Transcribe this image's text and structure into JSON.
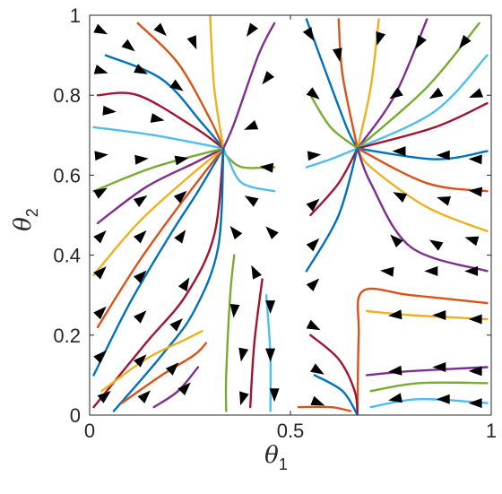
{
  "chart_data": {
    "type": "line",
    "title": "",
    "xlabel": "θ",
    "xlabel_sub": "1",
    "ylabel": "θ",
    "ylabel_sub": "2",
    "xlim": [
      0,
      1
    ],
    "ylim": [
      0,
      1
    ],
    "x_ticks": [
      0,
      0.5,
      1
    ],
    "x_tick_labels": [
      "0",
      "0.5",
      "1"
    ],
    "y_ticks": [
      0,
      0.2,
      0.4,
      0.6,
      0.8,
      1
    ],
    "y_tick_labels": [
      "0",
      "0.2",
      "0.4",
      "0.6",
      "0.8",
      "1"
    ],
    "grid": false,
    "legend": "none",
    "attractors": [
      {
        "x": 0.333,
        "y": 0.667
      },
      {
        "x": 0.667,
        "y": 0.667
      }
    ],
    "palette": [
      "#0072BD",
      "#D95319",
      "#EDB120",
      "#7E2F8E",
      "#77AC30",
      "#4DBEEE",
      "#A2142F"
    ],
    "series": [
      {
        "points": [
          [
            0.01,
            0.1
          ],
          [
            0.1,
            0.28
          ],
          [
            0.2,
            0.45
          ],
          [
            0.27,
            0.56
          ],
          [
            0.333,
            0.667
          ]
        ]
      },
      {
        "points": [
          [
            0.02,
            0.22
          ],
          [
            0.12,
            0.38
          ],
          [
            0.22,
            0.52
          ],
          [
            0.333,
            0.667
          ]
        ]
      },
      {
        "points": [
          [
            0.01,
            0.35
          ],
          [
            0.12,
            0.48
          ],
          [
            0.24,
            0.59
          ],
          [
            0.333,
            0.667
          ]
        ]
      },
      {
        "points": [
          [
            0.02,
            0.48
          ],
          [
            0.14,
            0.57
          ],
          [
            0.26,
            0.63
          ],
          [
            0.333,
            0.667
          ]
        ]
      },
      {
        "points": [
          [
            0.01,
            0.56
          ],
          [
            0.16,
            0.62
          ],
          [
            0.333,
            0.667
          ]
        ]
      },
      {
        "points": [
          [
            0.01,
            0.72
          ],
          [
            0.16,
            0.7
          ],
          [
            0.333,
            0.667
          ]
        ]
      },
      {
        "points": [
          [
            0.02,
            0.8
          ],
          [
            0.12,
            0.8
          ],
          [
            0.26,
            0.72
          ],
          [
            0.333,
            0.667
          ]
        ]
      },
      {
        "points": [
          [
            0.04,
            0.9
          ],
          [
            0.18,
            0.84
          ],
          [
            0.28,
            0.73
          ],
          [
            0.333,
            0.667
          ]
        ]
      },
      {
        "points": [
          [
            0.12,
            0.98
          ],
          [
            0.22,
            0.88
          ],
          [
            0.3,
            0.74
          ],
          [
            0.333,
            0.667
          ]
        ]
      },
      {
        "points": [
          [
            0.3,
            1.0
          ],
          [
            0.31,
            0.82
          ],
          [
            0.333,
            0.667
          ]
        ]
      },
      {
        "points": [
          [
            0.46,
            0.98
          ],
          [
            0.42,
            0.9
          ],
          [
            0.36,
            0.73
          ],
          [
            0.333,
            0.667
          ]
        ]
      },
      {
        "points": [
          [
            0.46,
            0.62
          ],
          [
            0.38,
            0.62
          ],
          [
            0.34,
            0.65
          ],
          [
            0.333,
            0.667
          ]
        ]
      },
      {
        "points": [
          [
            0.46,
            0.56
          ],
          [
            0.38,
            0.58
          ],
          [
            0.345,
            0.64
          ],
          [
            0.333,
            0.667
          ]
        ]
      },
      {
        "points": [
          [
            0.01,
            0.02
          ],
          [
            0.14,
            0.18
          ],
          [
            0.24,
            0.3
          ],
          [
            0.31,
            0.45
          ],
          [
            0.333,
            0.667
          ]
        ]
      },
      {
        "points": [
          [
            0.06,
            0.01
          ],
          [
            0.18,
            0.15
          ],
          [
            0.26,
            0.26
          ],
          [
            0.32,
            0.42
          ],
          [
            0.333,
            0.667
          ]
        ]
      },
      {
        "points": [
          [
            0.08,
            0.03
          ],
          [
            0.18,
            0.1
          ],
          [
            0.26,
            0.15
          ],
          [
            0.29,
            0.18
          ]
        ]
      },
      {
        "points": [
          [
            0.03,
            0.06
          ],
          [
            0.14,
            0.14
          ],
          [
            0.24,
            0.19
          ],
          [
            0.28,
            0.21
          ]
        ]
      },
      {
        "points": [
          [
            0.16,
            0.02
          ],
          [
            0.22,
            0.06
          ],
          [
            0.27,
            0.12
          ]
        ]
      },
      {
        "points": [
          [
            0.34,
            0.01
          ],
          [
            0.34,
            0.1
          ],
          [
            0.35,
            0.3
          ],
          [
            0.36,
            0.4
          ]
        ]
      },
      {
        "points": [
          [
            0.45,
            0.01
          ],
          [
            0.45,
            0.15
          ],
          [
            0.44,
            0.3
          ]
        ]
      },
      {
        "points": [
          [
            0.4,
            0.02
          ],
          [
            0.41,
            0.18
          ],
          [
            0.43,
            0.34
          ]
        ]
      },
      {
        "points": [
          [
            0.54,
            0.99
          ],
          [
            0.58,
            0.88
          ],
          [
            0.64,
            0.72
          ],
          [
            0.667,
            0.667
          ]
        ]
      },
      {
        "points": [
          [
            0.62,
            0.99
          ],
          [
            0.63,
            0.85
          ],
          [
            0.667,
            0.667
          ]
        ]
      },
      {
        "points": [
          [
            0.72,
            0.99
          ],
          [
            0.7,
            0.82
          ],
          [
            0.667,
            0.667
          ]
        ]
      },
      {
        "points": [
          [
            0.84,
            0.99
          ],
          [
            0.76,
            0.8
          ],
          [
            0.667,
            0.667
          ]
        ]
      },
      {
        "points": [
          [
            0.97,
            0.98
          ],
          [
            0.84,
            0.82
          ],
          [
            0.667,
            0.667
          ]
        ]
      },
      {
        "points": [
          [
            0.99,
            0.9
          ],
          [
            0.86,
            0.76
          ],
          [
            0.667,
            0.667
          ]
        ]
      },
      {
        "points": [
          [
            0.99,
            0.78
          ],
          [
            0.86,
            0.72
          ],
          [
            0.667,
            0.667
          ]
        ]
      },
      {
        "points": [
          [
            0.99,
            0.66
          ],
          [
            0.86,
            0.64
          ],
          [
            0.667,
            0.667
          ]
        ]
      },
      {
        "points": [
          [
            0.99,
            0.56
          ],
          [
            0.84,
            0.58
          ],
          [
            0.667,
            0.667
          ]
        ]
      },
      {
        "points": [
          [
            0.99,
            0.46
          ],
          [
            0.84,
            0.52
          ],
          [
            0.7,
            0.62
          ],
          [
            0.667,
            0.667
          ]
        ]
      },
      {
        "points": [
          [
            0.99,
            0.36
          ],
          [
            0.8,
            0.42
          ],
          [
            0.7,
            0.58
          ],
          [
            0.667,
            0.667
          ]
        ]
      },
      {
        "points": [
          [
            0.55,
            0.8
          ],
          [
            0.6,
            0.72
          ],
          [
            0.667,
            0.667
          ]
        ]
      },
      {
        "points": [
          [
            0.54,
            0.62
          ],
          [
            0.6,
            0.64
          ],
          [
            0.667,
            0.667
          ]
        ]
      },
      {
        "points": [
          [
            0.55,
            0.5
          ],
          [
            0.62,
            0.58
          ],
          [
            0.667,
            0.667
          ]
        ]
      },
      {
        "points": [
          [
            0.54,
            0.36
          ],
          [
            0.62,
            0.5
          ],
          [
            0.667,
            0.667
          ]
        ]
      },
      {
        "points": [
          [
            0.99,
            0.28
          ],
          [
            0.8,
            0.3
          ],
          [
            0.68,
            0.31
          ],
          [
            0.67,
            0.2
          ],
          [
            0.667,
            0.0
          ]
        ]
      },
      {
        "points": [
          [
            0.99,
            0.24
          ],
          [
            0.8,
            0.25
          ],
          [
            0.69,
            0.26
          ]
        ]
      },
      {
        "points": [
          [
            0.99,
            0.12
          ],
          [
            0.8,
            0.11
          ],
          [
            0.69,
            0.1
          ]
        ]
      },
      {
        "points": [
          [
            0.99,
            0.08
          ],
          [
            0.82,
            0.08
          ],
          [
            0.7,
            0.06
          ]
        ]
      },
      {
        "points": [
          [
            0.99,
            0.03
          ],
          [
            0.82,
            0.04
          ],
          [
            0.7,
            0.02
          ]
        ]
      },
      {
        "points": [
          [
            0.55,
            0.2
          ],
          [
            0.62,
            0.14
          ],
          [
            0.66,
            0.06
          ],
          [
            0.667,
            0.0
          ]
        ]
      },
      {
        "points": [
          [
            0.56,
            0.1
          ],
          [
            0.63,
            0.06
          ],
          [
            0.667,
            0.0
          ]
        ]
      },
      {
        "points": [
          [
            0.52,
            0.02
          ],
          [
            0.6,
            0.02
          ],
          [
            0.65,
            0.01
          ]
        ]
      }
    ],
    "arrows": [
      {
        "x": 0.03,
        "y": 0.96,
        "dx": 1,
        "dy": -0.5
      },
      {
        "x": 0.1,
        "y": 0.92,
        "dx": 1,
        "dy": -0.8
      },
      {
        "x": 0.18,
        "y": 0.96,
        "dx": 1,
        "dy": -1
      },
      {
        "x": 0.26,
        "y": 0.93,
        "dx": 0.4,
        "dy": -1
      },
      {
        "x": 0.03,
        "y": 0.86,
        "dx": 1,
        "dy": -0.3
      },
      {
        "x": 0.13,
        "y": 0.86,
        "dx": 1,
        "dy": -0.5
      },
      {
        "x": 0.22,
        "y": 0.82,
        "dx": 1,
        "dy": -0.7
      },
      {
        "x": 0.05,
        "y": 0.76,
        "dx": 1,
        "dy": -0.1
      },
      {
        "x": 0.17,
        "y": 0.74,
        "dx": 1,
        "dy": -0.2
      },
      {
        "x": 0.03,
        "y": 0.65,
        "dx": 1,
        "dy": 0.1
      },
      {
        "x": 0.13,
        "y": 0.64,
        "dx": 1,
        "dy": 0.1
      },
      {
        "x": 0.23,
        "y": 0.64,
        "dx": 1,
        "dy": 0.2
      },
      {
        "x": 0.03,
        "y": 0.56,
        "dx": 1,
        "dy": 0.6
      },
      {
        "x": 0.13,
        "y": 0.54,
        "dx": 1,
        "dy": 0.7
      },
      {
        "x": 0.23,
        "y": 0.55,
        "dx": 1,
        "dy": 0.9
      },
      {
        "x": 0.03,
        "y": 0.45,
        "dx": 1,
        "dy": 1
      },
      {
        "x": 0.13,
        "y": 0.45,
        "dx": 1,
        "dy": 1
      },
      {
        "x": 0.23,
        "y": 0.45,
        "dx": 0.7,
        "dy": 1
      },
      {
        "x": 0.03,
        "y": 0.36,
        "dx": 1,
        "dy": 1
      },
      {
        "x": 0.13,
        "y": 0.35,
        "dx": 1,
        "dy": 1
      },
      {
        "x": 0.24,
        "y": 0.33,
        "dx": 0.6,
        "dy": 1
      },
      {
        "x": 0.03,
        "y": 0.26,
        "dx": 1,
        "dy": 1
      },
      {
        "x": 0.13,
        "y": 0.25,
        "dx": 1,
        "dy": 1
      },
      {
        "x": 0.22,
        "y": 0.23,
        "dx": 1,
        "dy": 1
      },
      {
        "x": 0.03,
        "y": 0.15,
        "dx": 1,
        "dy": 1
      },
      {
        "x": 0.13,
        "y": 0.14,
        "dx": 1,
        "dy": 1
      },
      {
        "x": 0.21,
        "y": 0.12,
        "dx": 1,
        "dy": 1
      },
      {
        "x": 0.04,
        "y": 0.05,
        "dx": 1,
        "dy": 0.8
      },
      {
        "x": 0.14,
        "y": 0.05,
        "dx": 1,
        "dy": 1
      },
      {
        "x": 0.24,
        "y": 0.07,
        "dx": 1,
        "dy": 1
      },
      {
        "x": 0.4,
        "y": 0.96,
        "dx": -0.7,
        "dy": -1
      },
      {
        "x": 0.44,
        "y": 0.84,
        "dx": -0.8,
        "dy": -1
      },
      {
        "x": 0.4,
        "y": 0.72,
        "dx": -1,
        "dy": -0.4
      },
      {
        "x": 0.44,
        "y": 0.62,
        "dx": -1,
        "dy": 0.1
      },
      {
        "x": 0.4,
        "y": 0.54,
        "dx": -1,
        "dy": 0.6
      },
      {
        "x": 0.45,
        "y": 0.46,
        "dx": -1,
        "dy": 1
      },
      {
        "x": 0.36,
        "y": 0.46,
        "dx": -0.8,
        "dy": 1
      },
      {
        "x": 0.41,
        "y": 0.36,
        "dx": -0.5,
        "dy": 1
      },
      {
        "x": 0.36,
        "y": 0.26,
        "dx": -0.1,
        "dy": -1
      },
      {
        "x": 0.45,
        "y": 0.27,
        "dx": 0,
        "dy": -1
      },
      {
        "x": 0.38,
        "y": 0.15,
        "dx": -0.2,
        "dy": -1
      },
      {
        "x": 0.45,
        "y": 0.15,
        "dx": 0,
        "dy": -1
      },
      {
        "x": 0.38,
        "y": 0.04,
        "dx": -0.3,
        "dy": -1
      },
      {
        "x": 0.46,
        "y": 0.05,
        "dx": 0,
        "dy": -1
      },
      {
        "x": 0.55,
        "y": 0.95,
        "dx": 0.6,
        "dy": -1
      },
      {
        "x": 0.62,
        "y": 0.9,
        "dx": 0.2,
        "dy": -1
      },
      {
        "x": 0.72,
        "y": 0.94,
        "dx": -0.3,
        "dy": -1
      },
      {
        "x": 0.82,
        "y": 0.93,
        "dx": -0.6,
        "dy": -1
      },
      {
        "x": 0.93,
        "y": 0.93,
        "dx": -0.8,
        "dy": -1
      },
      {
        "x": 0.56,
        "y": 0.8,
        "dx": 1,
        "dy": -0.8
      },
      {
        "x": 0.76,
        "y": 0.8,
        "dx": -1,
        "dy": -0.7
      },
      {
        "x": 0.86,
        "y": 0.8,
        "dx": -1,
        "dy": -0.6
      },
      {
        "x": 0.96,
        "y": 0.8,
        "dx": -1,
        "dy": -0.4
      },
      {
        "x": 0.56,
        "y": 0.65,
        "dx": 1,
        "dy": 0.1
      },
      {
        "x": 0.77,
        "y": 0.66,
        "dx": -1,
        "dy": 0
      },
      {
        "x": 0.88,
        "y": 0.65,
        "dx": -1,
        "dy": 0
      },
      {
        "x": 0.96,
        "y": 0.64,
        "dx": -1,
        "dy": 0.05
      },
      {
        "x": 0.56,
        "y": 0.53,
        "dx": 1,
        "dy": 0.9
      },
      {
        "x": 0.77,
        "y": 0.55,
        "dx": -1,
        "dy": 0.5
      },
      {
        "x": 0.88,
        "y": 0.54,
        "dx": -1,
        "dy": 0.3
      },
      {
        "x": 0.96,
        "y": 0.56,
        "dx": -1,
        "dy": 0.1
      },
      {
        "x": 0.56,
        "y": 0.43,
        "dx": 1,
        "dy": 1
      },
      {
        "x": 0.76,
        "y": 0.44,
        "dx": -1,
        "dy": 1
      },
      {
        "x": 0.86,
        "y": 0.43,
        "dx": -1,
        "dy": 0.6
      },
      {
        "x": 0.95,
        "y": 0.44,
        "dx": -1,
        "dy": 0.3
      },
      {
        "x": 0.56,
        "y": 0.33,
        "dx": 1,
        "dy": 1
      },
      {
        "x": 0.74,
        "y": 0.36,
        "dx": -1,
        "dy": 0.1
      },
      {
        "x": 0.85,
        "y": 0.36,
        "dx": -1,
        "dy": 0
      },
      {
        "x": 0.95,
        "y": 0.36,
        "dx": -1,
        "dy": 0
      },
      {
        "x": 0.56,
        "y": 0.22,
        "dx": 1,
        "dy": -0.5
      },
      {
        "x": 0.76,
        "y": 0.25,
        "dx": -1,
        "dy": -0.1
      },
      {
        "x": 0.87,
        "y": 0.25,
        "dx": -1,
        "dy": 0
      },
      {
        "x": 0.96,
        "y": 0.24,
        "dx": -1,
        "dy": 0
      },
      {
        "x": 0.57,
        "y": 0.11,
        "dx": 1,
        "dy": -0.6
      },
      {
        "x": 0.76,
        "y": 0.11,
        "dx": -1,
        "dy": -0.1
      },
      {
        "x": 0.87,
        "y": 0.12,
        "dx": -1,
        "dy": 0
      },
      {
        "x": 0.96,
        "y": 0.11,
        "dx": -1,
        "dy": 0
      },
      {
        "x": 0.57,
        "y": 0.03,
        "dx": 1,
        "dy": -0.4
      },
      {
        "x": 0.76,
        "y": 0.04,
        "dx": -1,
        "dy": -0.2
      },
      {
        "x": 0.88,
        "y": 0.04,
        "dx": -1,
        "dy": 0
      },
      {
        "x": 0.96,
        "y": 0.03,
        "dx": -1,
        "dy": 0
      }
    ]
  }
}
